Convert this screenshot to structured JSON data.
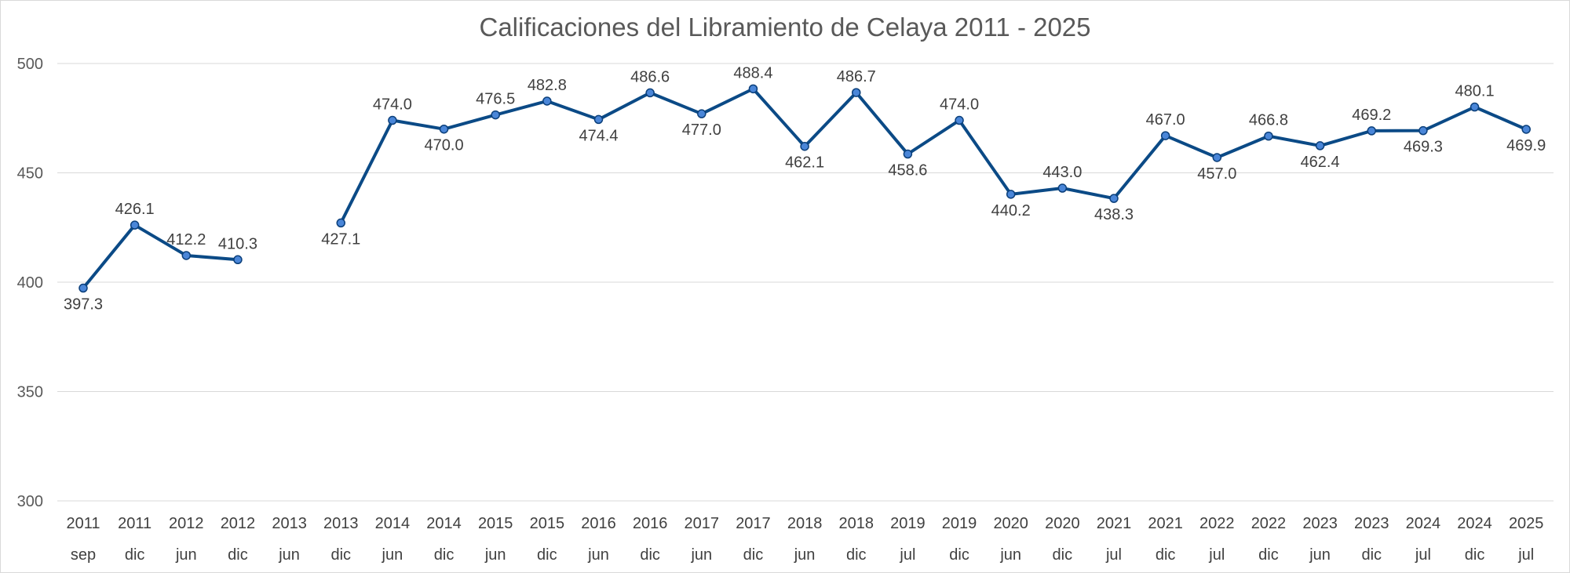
{
  "chart_data": {
    "type": "line",
    "title": "Calificaciones del Libramiento de Celaya 2011 - 2025",
    "xlabel": "",
    "ylabel": "",
    "ylim": [
      300,
      500
    ],
    "yticks": [
      "300",
      "350",
      "400",
      "450",
      "500"
    ],
    "grid": true,
    "legend": "none",
    "colors": {
      "line": "#0b4a86",
      "marker": "#4a86d8",
      "grid": "#d9d9d9"
    },
    "categories": [
      {
        "year": "2011",
        "period": "sep"
      },
      {
        "year": "2011",
        "period": "dic"
      },
      {
        "year": "2012",
        "period": "jun"
      },
      {
        "year": "2012",
        "period": "dic"
      },
      {
        "year": "2013",
        "period": "jun"
      },
      {
        "year": "2013",
        "period": "dic"
      },
      {
        "year": "2014",
        "period": "jun"
      },
      {
        "year": "2014",
        "period": "dic"
      },
      {
        "year": "2015",
        "period": "jun"
      },
      {
        "year": "2015",
        "period": "dic"
      },
      {
        "year": "2016",
        "period": "jun"
      },
      {
        "year": "2016",
        "period": "dic"
      },
      {
        "year": "2017",
        "period": "jun"
      },
      {
        "year": "2017",
        "period": "dic"
      },
      {
        "year": "2018",
        "period": "jun"
      },
      {
        "year": "2018",
        "period": "dic"
      },
      {
        "year": "2019",
        "period": "jul"
      },
      {
        "year": "2019",
        "period": "dic"
      },
      {
        "year": "2020",
        "period": "jun"
      },
      {
        "year": "2020",
        "period": "dic"
      },
      {
        "year": "2021",
        "period": "jul"
      },
      {
        "year": "2021",
        "period": "dic"
      },
      {
        "year": "2022",
        "period": "jul"
      },
      {
        "year": "2022",
        "period": "dic"
      },
      {
        "year": "2023",
        "period": "jun"
      },
      {
        "year": "2023",
        "period": "dic"
      },
      {
        "year": "2024",
        "period": "jul"
      },
      {
        "year": "2024",
        "period": "dic"
      },
      {
        "year": "2025",
        "period": "jul"
      }
    ],
    "series": [
      {
        "values": [
          397.3,
          426.1,
          412.2,
          410.3,
          null,
          427.1,
          474.0,
          470.0,
          476.5,
          482.8,
          474.4,
          486.6,
          477.0,
          488.4,
          462.1,
          486.7,
          458.6,
          474.0,
          440.2,
          443.0,
          438.3,
          467.0,
          457.0,
          466.8,
          462.4,
          469.2,
          469.3,
          480.1,
          469.9
        ],
        "labels": [
          "397.3",
          "426.1",
          "412.2",
          "410.3",
          null,
          "427.1",
          "474.0",
          "470.0",
          "476.5",
          "482.8",
          "474.4",
          "486.6",
          "477.0",
          "488.4",
          "462.1",
          "486.7",
          "458.6",
          "474.0",
          "440.2",
          "443.0",
          "438.3",
          "467.0",
          "457.0",
          "466.8",
          "462.4",
          "469.2",
          "469.3",
          "480.1",
          "469.9"
        ],
        "label_position": [
          "below",
          "above",
          "above",
          "above",
          null,
          "below",
          "above",
          "below",
          "above",
          "above",
          "below",
          "above",
          "below",
          "above",
          "below",
          "above",
          "below",
          "above",
          "below",
          "above",
          "below",
          "above",
          "below",
          "above",
          "below",
          "above",
          "below",
          "above",
          "below"
        ]
      }
    ]
  }
}
